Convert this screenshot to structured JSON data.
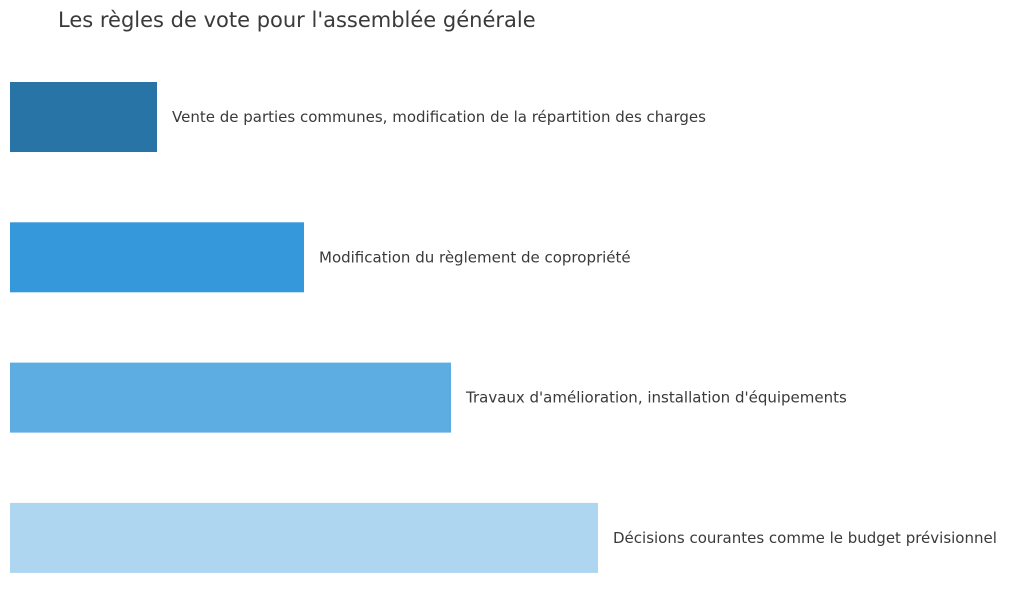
{
  "chart_data": {
    "type": "bar",
    "orientation": "horizontal",
    "title": "Les règles de vote pour l'assemblée générale",
    "xlabel": "",
    "ylabel": "",
    "grid": false,
    "axes_visible": false,
    "xlim": [
      0,
      4
    ],
    "categories": [
      "Vente de parties communes, modification de la répartition des charges",
      "Modification du règlement de copropriété",
      "Travaux d'amélioration, installation d'équipements",
      "Décisions courantes comme le budget prévisionnel"
    ],
    "values": [
      1,
      2,
      3,
      4
    ],
    "colors": [
      "#2874a6",
      "#3498db",
      "#5dade2",
      "#aed6f1"
    ]
  }
}
